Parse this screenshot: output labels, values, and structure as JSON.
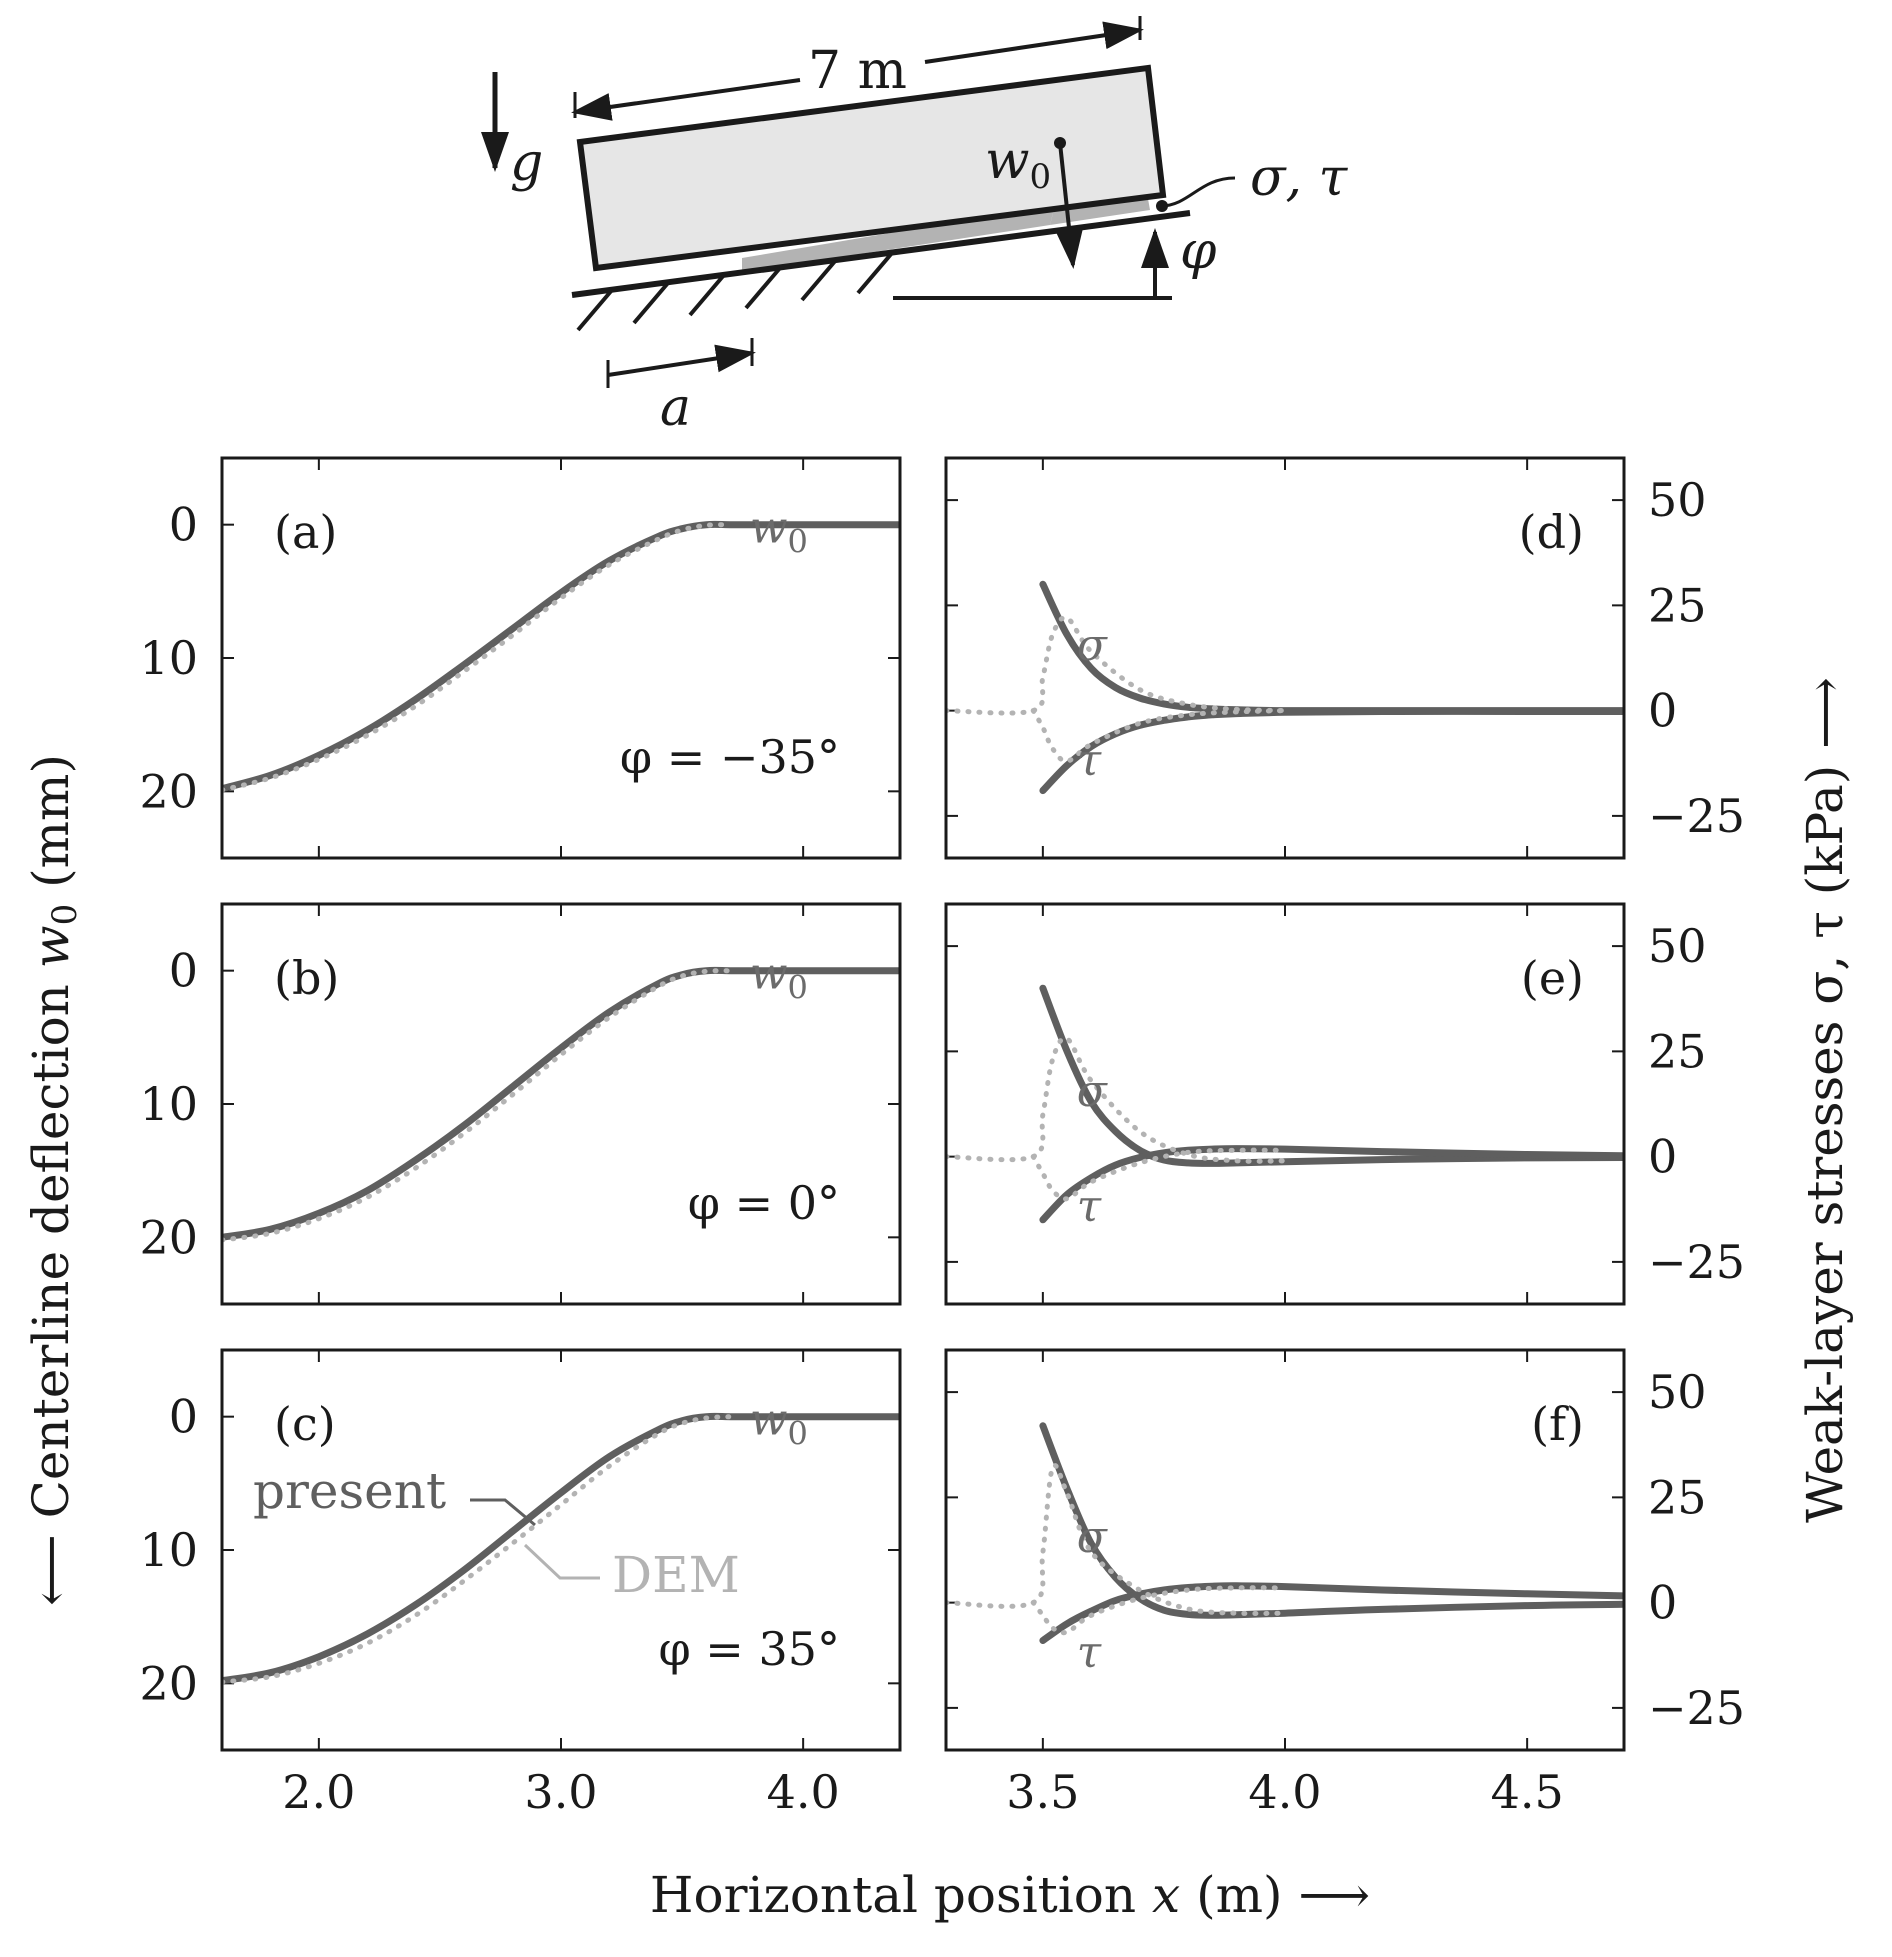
{
  "sketch": {
    "length_label": "7 m",
    "gravity_label": "g",
    "w0_label": "w",
    "w0_sub": "0",
    "stress_label": "σ, τ",
    "angle_label": "φ",
    "crack_label": "a"
  },
  "axes": {
    "left_ylabel": "Centerline deflection",
    "left_ylabel_var": "w",
    "left_ylabel_sub": "0",
    "left_ylabel_unit": " (mm)",
    "left_arrow": "⟵",
    "right_ylabel": "Weak-layer stresses σ, τ (kPa)",
    "right_arrow": "⟶",
    "xlabel": "Horizontal position",
    "xlabel_var": "x",
    "xlabel_unit": " (m)",
    "x_arrow": "⟶"
  },
  "legend": {
    "present": "present",
    "dem": "DEM"
  },
  "colors": {
    "present": "#5f5f5f",
    "dem": "#b3b3b3",
    "frame": "#1a1a1a"
  },
  "chart_data": [
    {
      "id": "a",
      "type": "line",
      "label": "(a)",
      "phi": "φ = −35°",
      "curve_label": "w",
      "curve_label_sub": "0",
      "xlim": [
        1.6,
        4.4
      ],
      "ylim": [
        -5,
        25
      ],
      "y_inverted": true,
      "xticks": [
        2.0,
        3.0,
        4.0
      ],
      "yticks": [
        0,
        10,
        20
      ],
      "ytick_labels": [
        "0",
        "10",
        "20"
      ],
      "series": [
        {
          "role": "present",
          "x": [
            1.6,
            1.8,
            2.0,
            2.2,
            2.4,
            2.6,
            2.8,
            3.0,
            3.2,
            3.4,
            3.5,
            3.6,
            3.7,
            3.8,
            4.0,
            4.2,
            4.4
          ],
          "y": [
            19.8,
            18.8,
            17.3,
            15.4,
            13.1,
            10.5,
            7.8,
            5.1,
            2.7,
            0.9,
            0.3,
            0.0,
            0.0,
            0.0,
            0.0,
            0.0,
            0.0
          ]
        },
        {
          "role": "dem",
          "x": [
            1.6,
            1.8,
            2.0,
            2.2,
            2.4,
            2.6,
            2.8,
            3.0,
            3.2,
            3.4,
            3.5,
            3.6,
            3.7
          ],
          "y": [
            19.9,
            19.0,
            17.6,
            15.8,
            13.6,
            11.0,
            8.3,
            5.5,
            3.0,
            1.1,
            0.4,
            0.05,
            0.0
          ]
        }
      ]
    },
    {
      "id": "b",
      "type": "line",
      "label": "(b)",
      "phi": "φ = 0°",
      "curve_label": "w",
      "curve_label_sub": "0",
      "xlim": [
        1.6,
        4.4
      ],
      "ylim": [
        -5,
        25
      ],
      "y_inverted": true,
      "xticks": [
        2.0,
        3.0,
        4.0
      ],
      "yticks": [
        0,
        10,
        20
      ],
      "ytick_labels": [
        "0",
        "10",
        "20"
      ],
      "series": [
        {
          "role": "present",
          "x": [
            1.6,
            1.8,
            2.0,
            2.2,
            2.4,
            2.6,
            2.8,
            3.0,
            3.2,
            3.4,
            3.5,
            3.6,
            3.7,
            3.8,
            4.0,
            4.2,
            4.4
          ],
          "y": [
            20.0,
            19.4,
            18.2,
            16.5,
            14.2,
            11.6,
            8.7,
            5.8,
            3.1,
            1.0,
            0.3,
            0.0,
            0.0,
            0.0,
            0.0,
            0.0,
            0.0
          ]
        },
        {
          "role": "dem",
          "x": [
            1.6,
            1.8,
            2.0,
            2.2,
            2.4,
            2.6,
            2.8,
            3.0,
            3.2,
            3.4,
            3.5,
            3.6,
            3.7
          ],
          "y": [
            20.2,
            19.7,
            18.6,
            17.0,
            14.8,
            12.2,
            9.3,
            6.3,
            3.5,
            1.2,
            0.4,
            0.05,
            0.0
          ]
        }
      ]
    },
    {
      "id": "c",
      "type": "line",
      "label": "(c)",
      "phi": "φ = 35°",
      "curve_label": "w",
      "curve_label_sub": "0",
      "xlim": [
        1.6,
        4.4
      ],
      "ylim": [
        -5,
        25
      ],
      "y_inverted": true,
      "xticks": [
        2.0,
        3.0,
        4.0
      ],
      "xtick_labels": [
        "2.0",
        "3.0",
        "4.0"
      ],
      "yticks": [
        0,
        10,
        20
      ],
      "ytick_labels": [
        "0",
        "10",
        "20"
      ],
      "series": [
        {
          "role": "present",
          "x": [
            1.6,
            1.8,
            2.0,
            2.2,
            2.4,
            2.6,
            2.8,
            3.0,
            3.2,
            3.4,
            3.5,
            3.6,
            3.7,
            3.8,
            4.0,
            4.2,
            4.4
          ],
          "y": [
            19.8,
            19.2,
            18.0,
            16.3,
            14.1,
            11.5,
            8.6,
            5.7,
            3.0,
            1.0,
            0.3,
            0.0,
            0.0,
            0.0,
            0.0,
            0.0,
            0.0
          ]
        },
        {
          "role": "dem",
          "x": [
            1.6,
            1.8,
            2.0,
            2.2,
            2.4,
            2.6,
            2.8,
            3.0,
            3.2,
            3.4,
            3.5,
            3.6,
            3.7
          ],
          "y": [
            19.9,
            19.5,
            18.5,
            17.0,
            14.9,
            12.3,
            9.5,
            6.6,
            3.7,
            1.3,
            0.5,
            0.1,
            0.0
          ]
        }
      ]
    },
    {
      "id": "d",
      "type": "line",
      "label": "(d)",
      "sigma_label": "σ",
      "tau_label": "τ",
      "xlim": [
        3.3,
        4.7
      ],
      "ylim": [
        -35,
        60
      ],
      "xticks": [
        3.5,
        4.0,
        4.5
      ],
      "yticks": [
        50,
        25,
        0,
        -25
      ],
      "ytick_labels": [
        "50",
        "25",
        "0",
        "−25"
      ],
      "series": [
        {
          "role": "present",
          "name": "σ",
          "x": [
            3.5,
            3.55,
            3.6,
            3.65,
            3.7,
            3.75,
            3.8,
            3.85,
            3.9,
            4.0,
            4.2,
            4.5,
            4.7
          ],
          "y": [
            30,
            18,
            10,
            5.5,
            3,
            1.6,
            0.8,
            0.4,
            0.2,
            0,
            0,
            0,
            0
          ]
        },
        {
          "role": "present",
          "name": "τ",
          "x": [
            3.5,
            3.55,
            3.6,
            3.65,
            3.7,
            3.75,
            3.8,
            3.85,
            3.9,
            4.0,
            4.2,
            4.5,
            4.7
          ],
          "y": [
            -19,
            -13,
            -8.5,
            -5.5,
            -3.5,
            -2.3,
            -1.5,
            -1.0,
            -0.7,
            -0.4,
            -0.2,
            -0.2,
            -0.2
          ]
        },
        {
          "role": "dem",
          "name": "σ",
          "x": [
            3.3,
            3.48,
            3.5,
            3.52,
            3.55,
            3.6,
            3.7,
            3.8,
            3.9,
            4.0
          ],
          "y": [
            0,
            0,
            8,
            18,
            22,
            14,
            5,
            1.5,
            0.3,
            0
          ]
        },
        {
          "role": "dem",
          "name": "τ",
          "x": [
            3.48,
            3.5,
            3.52,
            3.55,
            3.6,
            3.7,
            3.8,
            3.9,
            4.0
          ],
          "y": [
            0,
            -4,
            -9,
            -12,
            -8,
            -3,
            -1,
            -0.3,
            0
          ]
        }
      ]
    },
    {
      "id": "e",
      "type": "line",
      "label": "(e)",
      "sigma_label": "σ",
      "tau_label": "τ",
      "xlim": [
        3.3,
        4.7
      ],
      "ylim": [
        -35,
        60
      ],
      "xticks": [
        3.5,
        4.0,
        4.5
      ],
      "yticks": [
        50,
        25,
        0,
        -25
      ],
      "ytick_labels": [
        "50",
        "25",
        "0",
        "−25"
      ],
      "series": [
        {
          "role": "present",
          "name": "σ",
          "x": [
            3.5,
            3.55,
            3.6,
            3.65,
            3.7,
            3.75,
            3.8,
            3.85,
            3.9,
            4.0,
            4.2,
            4.5,
            4.7
          ],
          "y": [
            40,
            25,
            13,
            6,
            1.5,
            -0.8,
            -1.5,
            -1.6,
            -1.5,
            -1.2,
            -0.7,
            -0.3,
            -0.2
          ]
        },
        {
          "role": "present",
          "name": "τ",
          "x": [
            3.5,
            3.55,
            3.6,
            3.65,
            3.7,
            3.75,
            3.8,
            3.85,
            3.9,
            4.0,
            4.2,
            4.5,
            4.7
          ],
          "y": [
            -15,
            -9,
            -5,
            -2,
            -0.2,
            0.9,
            1.5,
            1.8,
            1.9,
            1.8,
            1.2,
            0.5,
            0.2
          ]
        },
        {
          "role": "dem",
          "name": "σ",
          "x": [
            3.3,
            3.48,
            3.5,
            3.52,
            3.55,
            3.6,
            3.7,
            3.8,
            3.9,
            4.0
          ],
          "y": [
            0,
            0,
            10,
            23,
            28,
            18,
            6,
            0.5,
            -1,
            -1
          ]
        },
        {
          "role": "dem",
          "name": "τ",
          "x": [
            3.48,
            3.5,
            3.52,
            3.55,
            3.6,
            3.7,
            3.8,
            3.9,
            4.0
          ],
          "y": [
            0,
            -4,
            -8,
            -10,
            -6,
            -1.5,
            1,
            1.5,
            1.5
          ]
        }
      ]
    },
    {
      "id": "f",
      "type": "line",
      "label": "(f)",
      "sigma_label": "σ",
      "tau_label": "τ",
      "xlim": [
        3.3,
        4.7
      ],
      "ylim": [
        -35,
        60
      ],
      "xticks": [
        3.5,
        4.0,
        4.5
      ],
      "xtick_labels": [
        "3.5",
        "4.0",
        "4.5"
      ],
      "yticks": [
        50,
        25,
        0,
        -25
      ],
      "ytick_labels": [
        "50",
        "25",
        "0",
        "−25"
      ],
      "series": [
        {
          "role": "present",
          "name": "σ",
          "x": [
            3.5,
            3.55,
            3.6,
            3.65,
            3.7,
            3.75,
            3.8,
            3.85,
            3.9,
            4.0,
            4.2,
            4.5,
            4.7
          ],
          "y": [
            42,
            27,
            14,
            6,
            1,
            -1.8,
            -2.8,
            -3.0,
            -2.9,
            -2.5,
            -1.6,
            -0.7,
            -0.4
          ]
        },
        {
          "role": "present",
          "name": "τ",
          "x": [
            3.5,
            3.55,
            3.6,
            3.65,
            3.7,
            3.75,
            3.8,
            3.85,
            3.9,
            4.0,
            4.2,
            4.5,
            4.7
          ],
          "y": [
            -9,
            -5,
            -2,
            0.5,
            2,
            3,
            3.6,
            3.9,
            4.0,
            3.8,
            3.0,
            2.1,
            1.6
          ]
        },
        {
          "role": "dem",
          "name": "σ",
          "x": [
            3.3,
            3.48,
            3.5,
            3.52,
            3.55,
            3.6,
            3.7,
            3.8,
            3.9,
            4.0
          ],
          "y": [
            0,
            0,
            12,
            32,
            26,
            12,
            3,
            -1.5,
            -2.5,
            -2.5
          ]
        },
        {
          "role": "dem",
          "name": "τ",
          "x": [
            3.48,
            3.5,
            3.52,
            3.55,
            3.6,
            3.7,
            3.8,
            3.9,
            4.0
          ],
          "y": [
            0,
            -3,
            -6,
            -7,
            -3,
            1,
            3,
            3.5,
            3.5
          ]
        }
      ]
    }
  ]
}
